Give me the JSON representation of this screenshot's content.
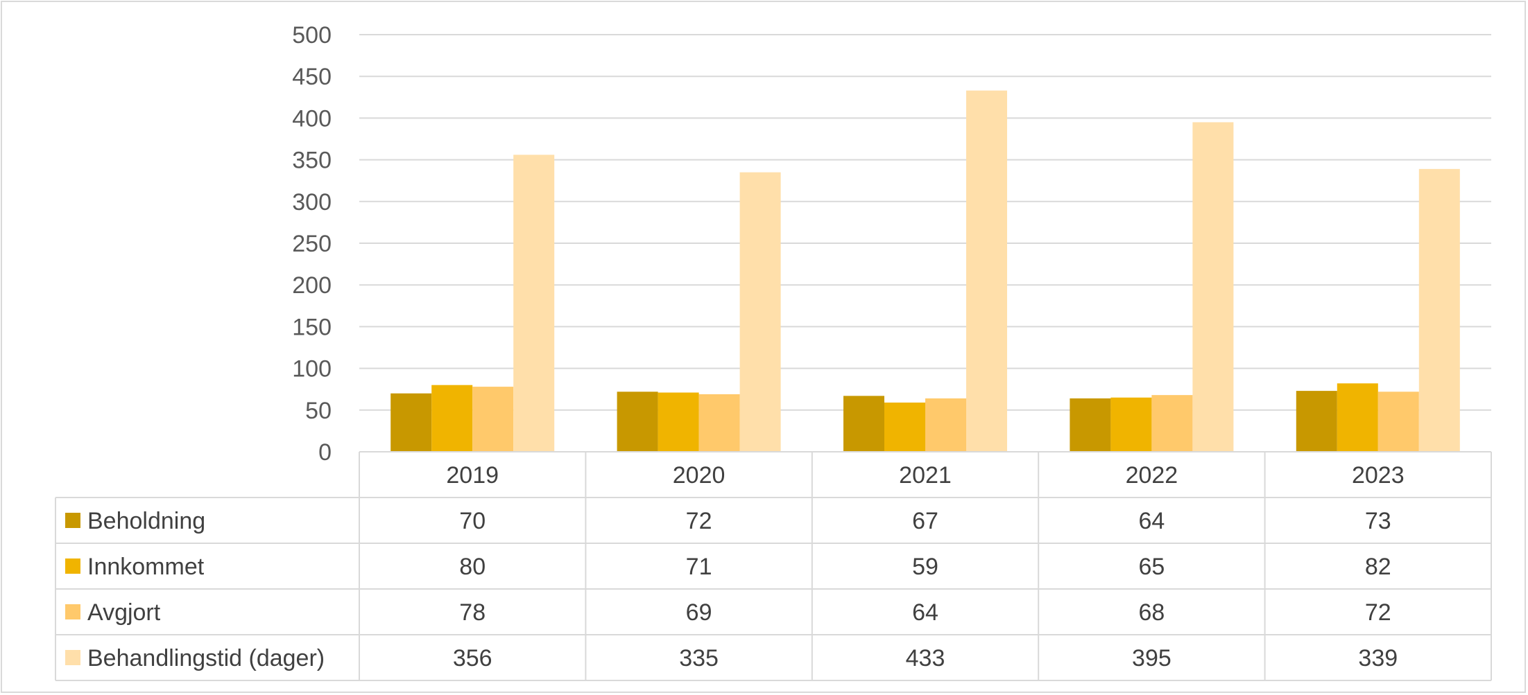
{
  "chart_data": {
    "type": "bar",
    "title": "",
    "xlabel": "",
    "ylabel": "",
    "categories": [
      "2019",
      "2020",
      "2021",
      "2022",
      "2023"
    ],
    "ylim": [
      0,
      500
    ],
    "yticks": [
      0,
      50,
      100,
      150,
      200,
      250,
      300,
      350,
      400,
      450,
      500
    ],
    "grid": true,
    "legend": "data-table",
    "series": [
      {
        "name": "Beholdning",
        "color": "#c89800",
        "values": [
          70,
          72,
          67,
          64,
          73
        ]
      },
      {
        "name": "Innkommet",
        "color": "#f0b400",
        "values": [
          80,
          71,
          59,
          65,
          82
        ]
      },
      {
        "name": "Avgjort",
        "color": "#ffc96b",
        "values": [
          78,
          69,
          64,
          68,
          72
        ]
      },
      {
        "name": "Behandlingstid (dager)",
        "color": "#ffdfaa",
        "values": [
          356,
          335,
          433,
          395,
          339
        ]
      }
    ]
  }
}
